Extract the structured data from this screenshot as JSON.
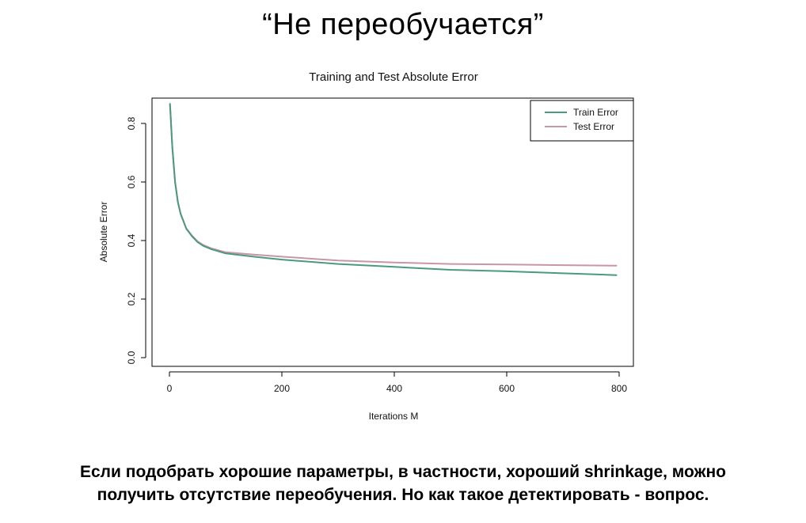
{
  "slide": {
    "title": "“Не переобучается”",
    "caption_line1": "Если подобрать хорошие параметры, в частности, хороший shrinkage, можно",
    "caption_line2": "получить отсутствие переобучения. Но как такое детектировать - вопрос."
  },
  "chart_data": {
    "type": "line",
    "title": "Training and Test Absolute Error",
    "xlabel": "Iterations M",
    "ylabel": "Absolute Error",
    "xlim": [
      0,
      800
    ],
    "ylim": [
      0,
      0.9
    ],
    "x_ticks": [
      "0",
      "200",
      "400",
      "600",
      "800"
    ],
    "y_ticks": [
      "0.0",
      "0.2",
      "0.4",
      "0.6",
      "0.8"
    ],
    "legend_position": "top-right",
    "grid": false,
    "series": [
      {
        "name": "Train Error",
        "color": "#4a9a80",
        "x": [
          1,
          5,
          10,
          15,
          20,
          30,
          40,
          50,
          60,
          75,
          100,
          150,
          200,
          300,
          400,
          500,
          600,
          700,
          795
        ],
        "y": [
          0.865,
          0.72,
          0.6,
          0.53,
          0.49,
          0.44,
          0.415,
          0.395,
          0.382,
          0.37,
          0.356,
          0.345,
          0.335,
          0.32,
          0.31,
          0.3,
          0.295,
          0.288,
          0.282
        ]
      },
      {
        "name": "Test Error",
        "color": "#c896a6",
        "x": [
          1,
          5,
          10,
          15,
          20,
          30,
          40,
          50,
          60,
          75,
          100,
          150,
          200,
          300,
          400,
          500,
          600,
          700,
          795
        ],
        "y": [
          0.868,
          0.722,
          0.602,
          0.532,
          0.492,
          0.442,
          0.417,
          0.397,
          0.385,
          0.373,
          0.36,
          0.352,
          0.345,
          0.332,
          0.325,
          0.32,
          0.318,
          0.316,
          0.314
        ]
      }
    ]
  }
}
